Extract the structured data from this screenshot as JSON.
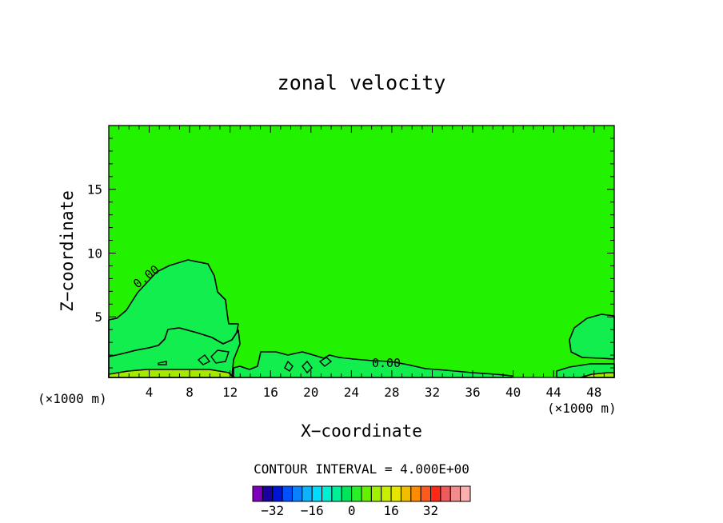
{
  "chart_data": {
    "type": "contour",
    "title": "zonal velocity",
    "xlabel": "X−coordinate",
    "ylabel": "Z−coordinate",
    "x_units": "(×1000 m)",
    "y_units": "(×1000 m)",
    "xlim": [
      0,
      50
    ],
    "ylim": [
      0.25,
      20
    ],
    "x_ticks": [
      4,
      8,
      12,
      16,
      20,
      24,
      28,
      32,
      36,
      40,
      44,
      48
    ],
    "y_ticks": [
      5,
      10,
      15
    ],
    "contour_labels": [
      "0.00",
      "0.00"
    ],
    "contour_interval_text": "CONTOUR INTERVAL = 4.000E+00",
    "colorbar": {
      "levels": [
        -36,
        -32,
        -28,
        -24,
        -20,
        -16,
        -12,
        -8,
        -4,
        0,
        4,
        8,
        12,
        16,
        20,
        24,
        28,
        32,
        36
      ],
      "tick_labels": [
        "−32",
        "−16",
        "0",
        "16",
        "32"
      ],
      "tick_values": [
        -32,
        -16,
        0,
        16,
        32
      ],
      "colors": [
        "#7f00bf",
        "#1a009f",
        "#0014d6",
        "#0050ff",
        "#0a82ff",
        "#0ab4ff",
        "#00dcff",
        "#00f0d2",
        "#00f096",
        "#00e65a",
        "#28f028",
        "#64f000",
        "#a0f000",
        "#c8f000",
        "#e6e600",
        "#f0be00",
        "#ff8c00",
        "#ff5a1e",
        "#ff2814",
        "#f05a5a",
        "#f08c8c",
        "#fcafaf"
      ]
    },
    "colors": {
      "background_field": "#22f200",
      "negative_region": "#12ee4e",
      "positive_band": "#a6e800",
      "contour_line": "#000000"
    }
  }
}
